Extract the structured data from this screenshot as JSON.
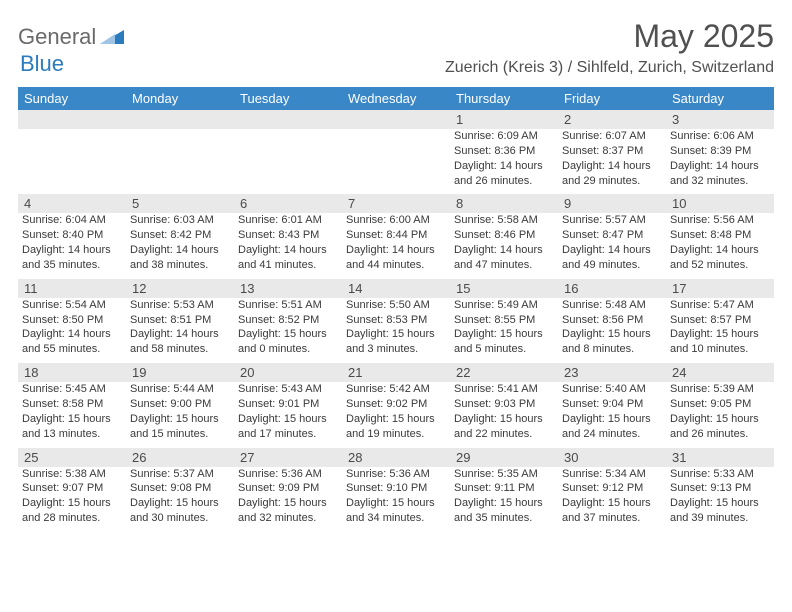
{
  "logo": {
    "text1": "General",
    "text2": "Blue"
  },
  "title": "May 2025",
  "location": "Zuerich (Kreis 3) / Sihlfeld, Zurich, Switzerland",
  "header_bg": "#3a87c8",
  "band_bg": "#e9e9e9",
  "text_color": "#3a3a3a",
  "days_of_week": [
    "Sunday",
    "Monday",
    "Tuesday",
    "Wednesday",
    "Thursday",
    "Friday",
    "Saturday"
  ],
  "weeks": [
    [
      null,
      null,
      null,
      null,
      {
        "n": "1",
        "sr": "6:09 AM",
        "ss": "8:36 PM",
        "dl": "14 hours and 26 minutes."
      },
      {
        "n": "2",
        "sr": "6:07 AM",
        "ss": "8:37 PM",
        "dl": "14 hours and 29 minutes."
      },
      {
        "n": "3",
        "sr": "6:06 AM",
        "ss": "8:39 PM",
        "dl": "14 hours and 32 minutes."
      }
    ],
    [
      {
        "n": "4",
        "sr": "6:04 AM",
        "ss": "8:40 PM",
        "dl": "14 hours and 35 minutes."
      },
      {
        "n": "5",
        "sr": "6:03 AM",
        "ss": "8:42 PM",
        "dl": "14 hours and 38 minutes."
      },
      {
        "n": "6",
        "sr": "6:01 AM",
        "ss": "8:43 PM",
        "dl": "14 hours and 41 minutes."
      },
      {
        "n": "7",
        "sr": "6:00 AM",
        "ss": "8:44 PM",
        "dl": "14 hours and 44 minutes."
      },
      {
        "n": "8",
        "sr": "5:58 AM",
        "ss": "8:46 PM",
        "dl": "14 hours and 47 minutes."
      },
      {
        "n": "9",
        "sr": "5:57 AM",
        "ss": "8:47 PM",
        "dl": "14 hours and 49 minutes."
      },
      {
        "n": "10",
        "sr": "5:56 AM",
        "ss": "8:48 PM",
        "dl": "14 hours and 52 minutes."
      }
    ],
    [
      {
        "n": "11",
        "sr": "5:54 AM",
        "ss": "8:50 PM",
        "dl": "14 hours and 55 minutes."
      },
      {
        "n": "12",
        "sr": "5:53 AM",
        "ss": "8:51 PM",
        "dl": "14 hours and 58 minutes."
      },
      {
        "n": "13",
        "sr": "5:51 AM",
        "ss": "8:52 PM",
        "dl": "15 hours and 0 minutes."
      },
      {
        "n": "14",
        "sr": "5:50 AM",
        "ss": "8:53 PM",
        "dl": "15 hours and 3 minutes."
      },
      {
        "n": "15",
        "sr": "5:49 AM",
        "ss": "8:55 PM",
        "dl": "15 hours and 5 minutes."
      },
      {
        "n": "16",
        "sr": "5:48 AM",
        "ss": "8:56 PM",
        "dl": "15 hours and 8 minutes."
      },
      {
        "n": "17",
        "sr": "5:47 AM",
        "ss": "8:57 PM",
        "dl": "15 hours and 10 minutes."
      }
    ],
    [
      {
        "n": "18",
        "sr": "5:45 AM",
        "ss": "8:58 PM",
        "dl": "15 hours and 13 minutes."
      },
      {
        "n": "19",
        "sr": "5:44 AM",
        "ss": "9:00 PM",
        "dl": "15 hours and 15 minutes."
      },
      {
        "n": "20",
        "sr": "5:43 AM",
        "ss": "9:01 PM",
        "dl": "15 hours and 17 minutes."
      },
      {
        "n": "21",
        "sr": "5:42 AM",
        "ss": "9:02 PM",
        "dl": "15 hours and 19 minutes."
      },
      {
        "n": "22",
        "sr": "5:41 AM",
        "ss": "9:03 PM",
        "dl": "15 hours and 22 minutes."
      },
      {
        "n": "23",
        "sr": "5:40 AM",
        "ss": "9:04 PM",
        "dl": "15 hours and 24 minutes."
      },
      {
        "n": "24",
        "sr": "5:39 AM",
        "ss": "9:05 PM",
        "dl": "15 hours and 26 minutes."
      }
    ],
    [
      {
        "n": "25",
        "sr": "5:38 AM",
        "ss": "9:07 PM",
        "dl": "15 hours and 28 minutes."
      },
      {
        "n": "26",
        "sr": "5:37 AM",
        "ss": "9:08 PM",
        "dl": "15 hours and 30 minutes."
      },
      {
        "n": "27",
        "sr": "5:36 AM",
        "ss": "9:09 PM",
        "dl": "15 hours and 32 minutes."
      },
      {
        "n": "28",
        "sr": "5:36 AM",
        "ss": "9:10 PM",
        "dl": "15 hours and 34 minutes."
      },
      {
        "n": "29",
        "sr": "5:35 AM",
        "ss": "9:11 PM",
        "dl": "15 hours and 35 minutes."
      },
      {
        "n": "30",
        "sr": "5:34 AM",
        "ss": "9:12 PM",
        "dl": "15 hours and 37 minutes."
      },
      {
        "n": "31",
        "sr": "5:33 AM",
        "ss": "9:13 PM",
        "dl": "15 hours and 39 minutes."
      }
    ]
  ],
  "labels": {
    "sunrise": "Sunrise:",
    "sunset": "Sunset:",
    "daylight": "Daylight:"
  }
}
